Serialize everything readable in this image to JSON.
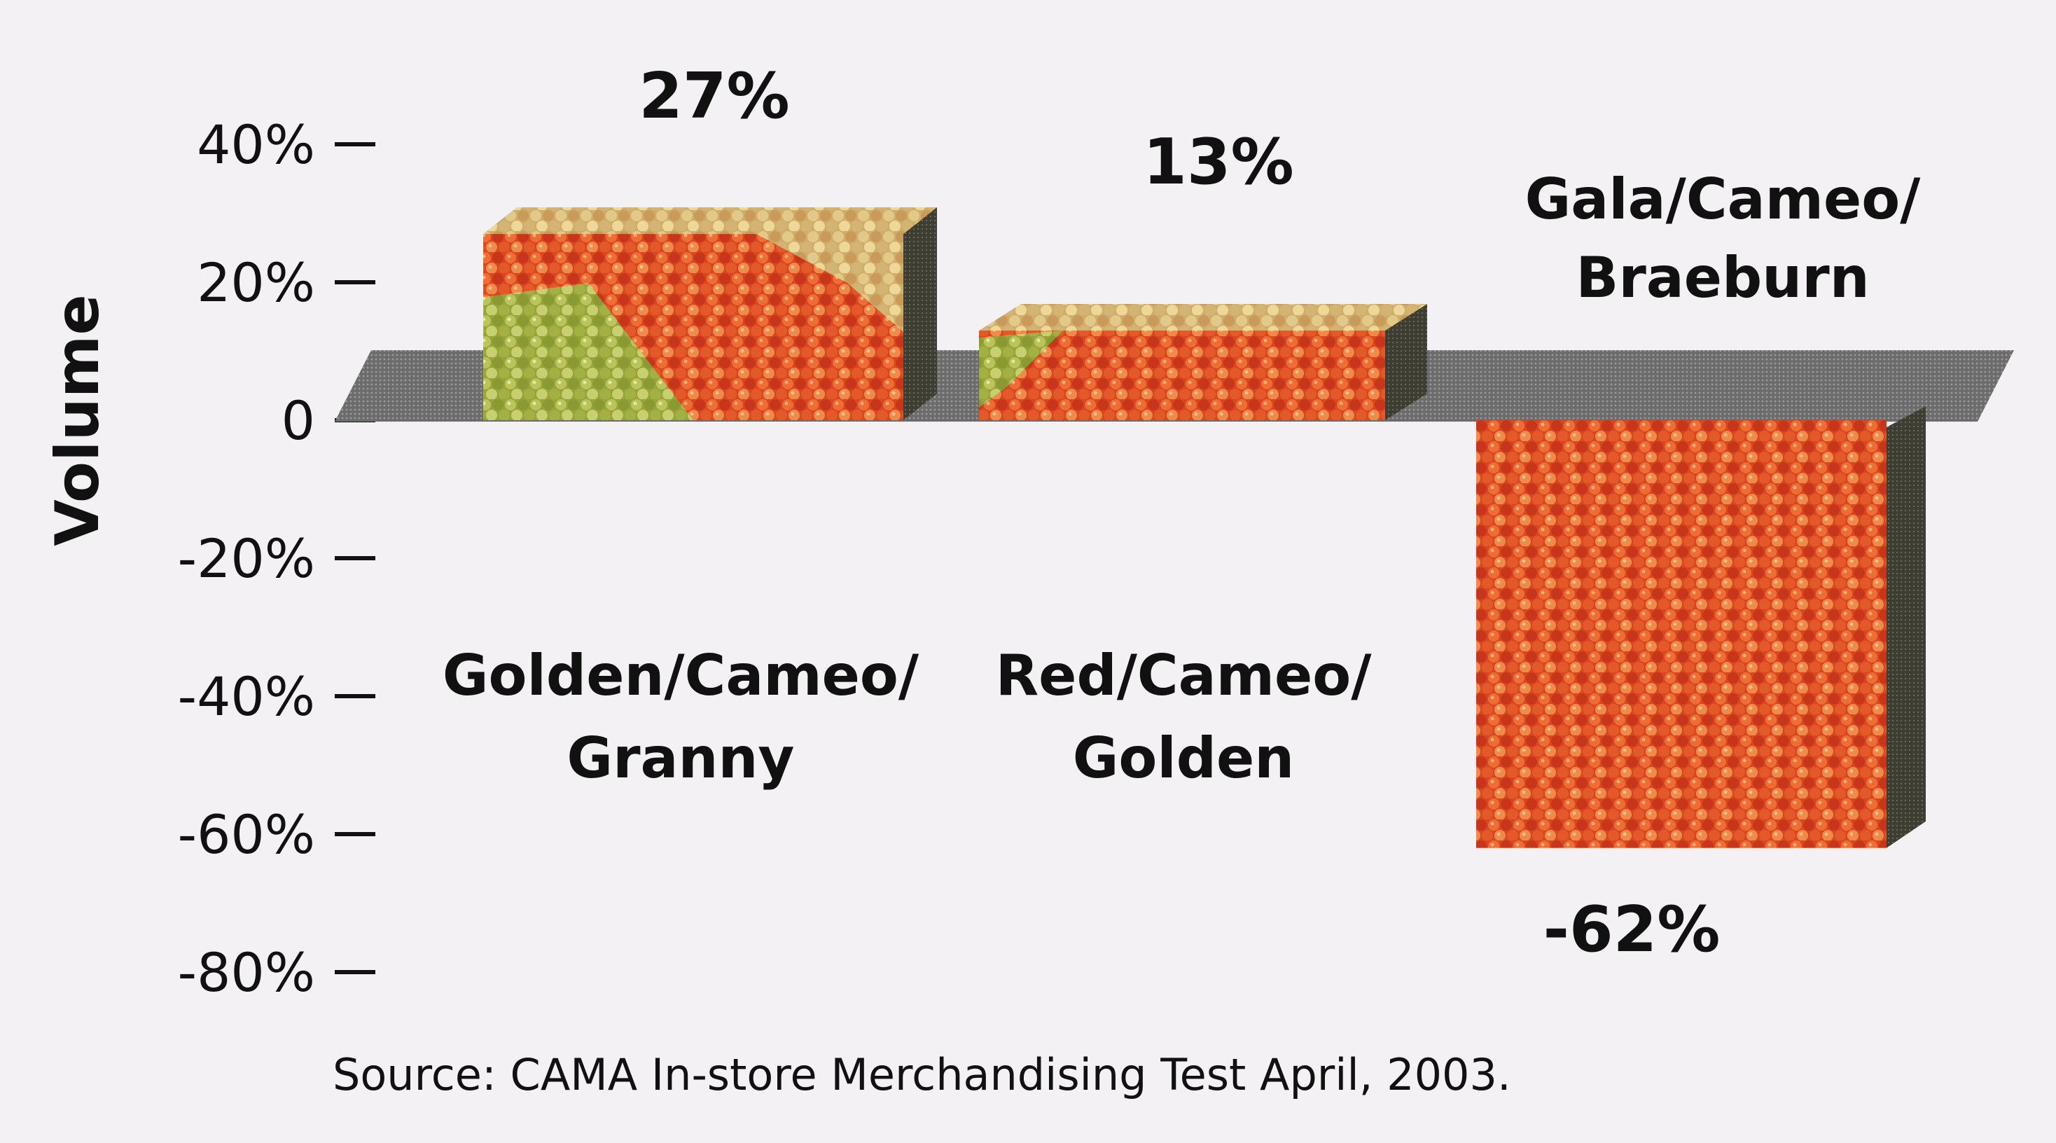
{
  "chart_data": {
    "type": "bar",
    "title": "",
    "xlabel": "",
    "ylabel": "Volume",
    "ylim": [
      -80,
      40
    ],
    "yticks": [
      "40%",
      "20%",
      "0",
      "-20%",
      "-40%",
      "-60%",
      "-80%"
    ],
    "categories": [
      {
        "line1": "Golden/Cameo/",
        "line2": "Granny"
      },
      {
        "line1": "Red/Cameo/",
        "line2": "Golden"
      },
      {
        "line1": "Gala/Cameo/",
        "line2": "Braeburn"
      }
    ],
    "values": [
      27,
      13,
      -62
    ],
    "value_labels": [
      "27%",
      "13%",
      "-62%"
    ],
    "source": "Source: CAMA In-store Merchandising Test April, 2003."
  },
  "colors": {
    "bar_top_red": "#c83a18",
    "bar_bottom_red": "#e5602a",
    "bar_green": "#a8b84a",
    "bar_yellow": "#d8c872",
    "floor": "#6f6f6f",
    "text": "#111111"
  }
}
